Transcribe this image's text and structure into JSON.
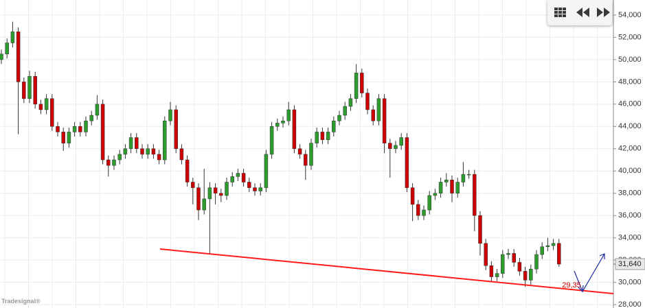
{
  "chart_data": {
    "type": "candlestick",
    "open": [
      50000,
      50500,
      51500,
      52500,
      48000,
      46500,
      48500,
      46000,
      45500,
      46500,
      44000,
      43500,
      42500,
      43500,
      44000,
      43500,
      44500,
      45000,
      46000,
      41000,
      40500,
      41000,
      41500,
      42000,
      43000,
      42000,
      41500,
      42000,
      41500,
      41000,
      44500,
      45500,
      42000,
      41000,
      39000,
      38500,
      36500,
      37500,
      38500,
      38000,
      37800,
      39000,
      39500,
      39800,
      39000,
      38500,
      38200,
      38500,
      41500,
      44000,
      44300,
      44500,
      45500,
      42000,
      41500,
      40500,
      42500,
      43500,
      42800,
      43500,
      44500,
      45000,
      45800,
      46500,
      48800,
      47000,
      45500,
      44500,
      46500,
      42500,
      42000,
      42300,
      43000,
      38500,
      37000,
      36000,
      36500,
      37800,
      38000,
      39000,
      39200,
      38000,
      39000,
      39700,
      39700,
      36000,
      33500,
      31500,
      30500,
      30800,
      32500,
      32600,
      31800,
      31000,
      30200,
      31200,
      32500,
      33200,
      33300,
      33500
    ],
    "high": [
      50900,
      51900,
      53400,
      52900,
      48400,
      49000,
      48900,
      46400,
      46900,
      46900,
      44400,
      43900,
      43900,
      44400,
      44400,
      44900,
      45400,
      46800,
      46400,
      41400,
      41400,
      41900,
      42400,
      43400,
      43400,
      42400,
      42400,
      42400,
      41900,
      44900,
      46200,
      45900,
      42400,
      41400,
      39400,
      38900,
      40200,
      39000,
      38900,
      38400,
      39400,
      39900,
      40200,
      40200,
      39400,
      38900,
      38900,
      41900,
      44400,
      44700,
      44900,
      46200,
      45900,
      42400,
      41900,
      42900,
      43900,
      43900,
      43900,
      44900,
      45400,
      46200,
      46900,
      49600,
      49200,
      47400,
      45900,
      46900,
      46900,
      42900,
      42700,
      43400,
      43400,
      38900,
      37400,
      36900,
      38200,
      38400,
      39400,
      39800,
      39600,
      39400,
      40800,
      40100,
      40100,
      36400,
      33900,
      31900,
      31200,
      32900,
      33000,
      33000,
      32200,
      31400,
      31600,
      32900,
      33600,
      34000,
      33900,
      33900
    ],
    "low": [
      49600,
      50100,
      51100,
      43300,
      46100,
      46100,
      45600,
      45100,
      45100,
      43600,
      43100,
      41800,
      42100,
      43100,
      43100,
      43100,
      44100,
      44600,
      40600,
      39500,
      40100,
      40600,
      41100,
      41600,
      41600,
      41100,
      41100,
      41100,
      40600,
      40600,
      44100,
      41600,
      40600,
      38600,
      37000,
      35600,
      36100,
      32500,
      37000,
      37200,
      37400,
      38600,
      39100,
      38600,
      38100,
      37800,
      37800,
      38100,
      41100,
      43600,
      43900,
      44100,
      41600,
      41100,
      39200,
      40100,
      42100,
      42400,
      42400,
      43100,
      44100,
      44600,
      45400,
      46100,
      46600,
      45100,
      44100,
      44100,
      41600,
      39400,
      41600,
      41900,
      38100,
      35500,
      35600,
      35600,
      36100,
      37400,
      37600,
      38600,
      37200,
      37600,
      38600,
      39300,
      34600,
      32400,
      31100,
      30100,
      30100,
      30400,
      32100,
      31400,
      30600,
      29600,
      29800,
      30800,
      32100,
      32800,
      32900,
      31400
    ],
    "close": [
      50500,
      51500,
      52500,
      48000,
      46500,
      48500,
      46000,
      45500,
      46500,
      44000,
      43500,
      42500,
      43500,
      44000,
      43500,
      44500,
      45000,
      46000,
      41000,
      40500,
      41000,
      41500,
      42000,
      43000,
      42000,
      41500,
      42000,
      41500,
      41000,
      44500,
      45500,
      42000,
      41000,
      39000,
      38500,
      36500,
      37500,
      38500,
      38000,
      37800,
      39000,
      39500,
      39800,
      39000,
      38500,
      38200,
      38500,
      41500,
      44000,
      44300,
      44500,
      45500,
      42000,
      41500,
      40500,
      42500,
      43500,
      42800,
      43500,
      44500,
      45000,
      45800,
      46500,
      48800,
      47000,
      45500,
      44500,
      46500,
      42500,
      42000,
      42300,
      43000,
      38500,
      37000,
      36000,
      36500,
      37800,
      38000,
      39000,
      39200,
      38000,
      39000,
      39700,
      39700,
      36000,
      33500,
      31500,
      30500,
      30800,
      32500,
      32600,
      31800,
      31000,
      30200,
      31200,
      32500,
      33200,
      33300,
      33500,
      31640
    ],
    "up_color": "#2e9b2e",
    "down_color": "#cc0000",
    "ylim": [
      27700,
      55350
    ],
    "yticks": [
      {
        "value": 28000,
        "label": "28,000"
      },
      {
        "value": 30000,
        "label": "30,000"
      },
      {
        "value": 32000,
        "label": "32,000"
      },
      {
        "value": 34000,
        "label": "34,000"
      },
      {
        "value": 36000,
        "label": "36,000"
      },
      {
        "value": 38000,
        "label": "38,000"
      },
      {
        "value": 40000,
        "label": "40,000"
      },
      {
        "value": 42000,
        "label": "42,000"
      },
      {
        "value": 44000,
        "label": "44,000"
      },
      {
        "value": 46000,
        "label": "46,000"
      },
      {
        "value": 48000,
        "label": "48,000"
      },
      {
        "value": 50000,
        "label": "50,000"
      },
      {
        "value": 52000,
        "label": "52,000"
      },
      {
        "value": 54000,
        "label": "54,000"
      }
    ],
    "grid": true,
    "last": {
      "value": 31640,
      "label": "31,640"
    },
    "annotation": "29,35",
    "logo": "Tradesignal®"
  }
}
